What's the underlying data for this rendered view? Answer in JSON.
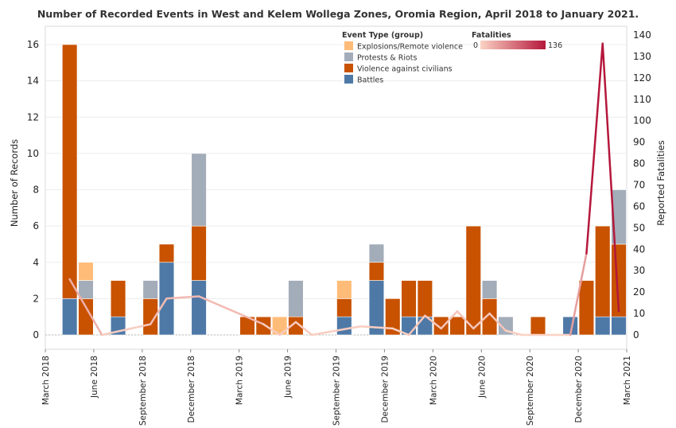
{
  "chart_data": {
    "type": "bar",
    "title": "Number of Recorded Events in West and Kelem Wollega Zones, Oromia Region, April 2018 to January 2021.",
    "ylabel": "Number of Records",
    "y2label": "Reported Fatalities",
    "ylim": [
      0,
      16
    ],
    "y2lim": [
      0,
      140
    ],
    "yticks": [
      0,
      2,
      4,
      6,
      8,
      10,
      12,
      14,
      16
    ],
    "y2ticks": [
      0,
      10,
      20,
      30,
      40,
      50,
      60,
      70,
      80,
      90,
      100,
      110,
      120,
      130,
      140
    ],
    "xticks": [
      "March 2018",
      "June 2018",
      "September 2018",
      "December 2018",
      "March 2019",
      "June 2019",
      "September 2019",
      "December 2019",
      "March 2020",
      "June 2020",
      "September 2020",
      "December 2020",
      "March 2021"
    ],
    "months": [
      "2018-03",
      "2018-04",
      "2018-05",
      "2018-06",
      "2018-07",
      "2018-08",
      "2018-09",
      "2018-10",
      "2018-11",
      "2018-12",
      "2019-01",
      "2019-02",
      "2019-03",
      "2019-04",
      "2019-05",
      "2019-06",
      "2019-07",
      "2019-08",
      "2019-09",
      "2019-10",
      "2019-11",
      "2019-12",
      "2020-01",
      "2020-02",
      "2020-03",
      "2020-04",
      "2020-05",
      "2020-06",
      "2020-07",
      "2020-08",
      "2020-09",
      "2020-10",
      "2020-11",
      "2020-12",
      "2021-01",
      "2021-02",
      "2021-03"
    ],
    "series": [
      {
        "name": "Battles",
        "color": "#4e79a7",
        "values": [
          0,
          2,
          0,
          0,
          1,
          0,
          0,
          4,
          0,
          3,
          0,
          0,
          0,
          0,
          0,
          0,
          0,
          0,
          1,
          0,
          3,
          0,
          1,
          1,
          0,
          0,
          0,
          0,
          0,
          0,
          0,
          0,
          1,
          0,
          1,
          1,
          0
        ]
      },
      {
        "name": "Violence against civilians",
        "color": "#c85200",
        "values": [
          0,
          14,
          2,
          0,
          2,
          0,
          2,
          1,
          0,
          3,
          0,
          0,
          1,
          1,
          0,
          1,
          0,
          0,
          1,
          0,
          1,
          2,
          2,
          2,
          1,
          1,
          6,
          2,
          0,
          0,
          1,
          0,
          0,
          3,
          5,
          4,
          0
        ]
      },
      {
        "name": "Protests & Riots",
        "color": "#a3acb9",
        "values": [
          0,
          0,
          1,
          0,
          0,
          0,
          1,
          0,
          0,
          4,
          0,
          0,
          0,
          0,
          0,
          2,
          0,
          0,
          0,
          0,
          1,
          0,
          0,
          0,
          0,
          0,
          0,
          1,
          1,
          0,
          0,
          0,
          0,
          0,
          0,
          3,
          0
        ]
      },
      {
        "name": "Explosions/Remote violence",
        "color": "#ffbc79",
        "values": [
          0,
          0,
          1,
          0,
          0,
          0,
          0,
          0,
          0,
          0,
          0,
          0,
          0,
          0,
          1,
          0,
          0,
          0,
          1,
          0,
          0,
          0,
          0,
          0,
          0,
          0,
          0,
          0,
          0,
          0,
          0,
          0,
          0,
          0,
          0,
          0,
          0
        ]
      }
    ],
    "fatalities": {
      "name": "Fatalities",
      "min": 0,
      "max": 136,
      "color_low": "#fbd3c4",
      "color_high": "#b5173b",
      "points": [
        [
          "2018-04",
          26
        ],
        [
          "2018-06",
          0
        ],
        [
          "2018-09",
          5
        ],
        [
          "2018-10",
          17
        ],
        [
          "2018-12",
          18
        ],
        [
          "2019-04",
          5
        ],
        [
          "2019-05",
          0
        ],
        [
          "2019-06",
          6
        ],
        [
          "2019-07",
          0
        ],
        [
          "2019-10",
          4
        ],
        [
          "2019-12",
          3
        ],
        [
          "2020-01",
          0
        ],
        [
          "2020-02",
          9
        ],
        [
          "2020-03",
          3
        ],
        [
          "2020-04",
          11
        ],
        [
          "2020-05",
          3
        ],
        [
          "2020-06",
          10
        ],
        [
          "2020-07",
          2
        ],
        [
          "2020-08",
          0
        ],
        [
          "2020-09",
          0
        ],
        [
          "2020-10",
          0
        ],
        [
          "2020-11",
          0
        ],
        [
          "2020-12",
          38
        ],
        [
          "2021-01",
          136
        ],
        [
          "2021-02",
          11
        ]
      ]
    },
    "legend": {
      "title": "Event Type (group)",
      "position": "top-right",
      "items": [
        "Explosions/Remote violence",
        "Protests & Riots",
        "Violence against civilians",
        "Battles"
      ],
      "fatalities_title": "Fatalities",
      "fatalities_min_label": "0",
      "fatalities_max_label": "136"
    },
    "grid": true
  }
}
